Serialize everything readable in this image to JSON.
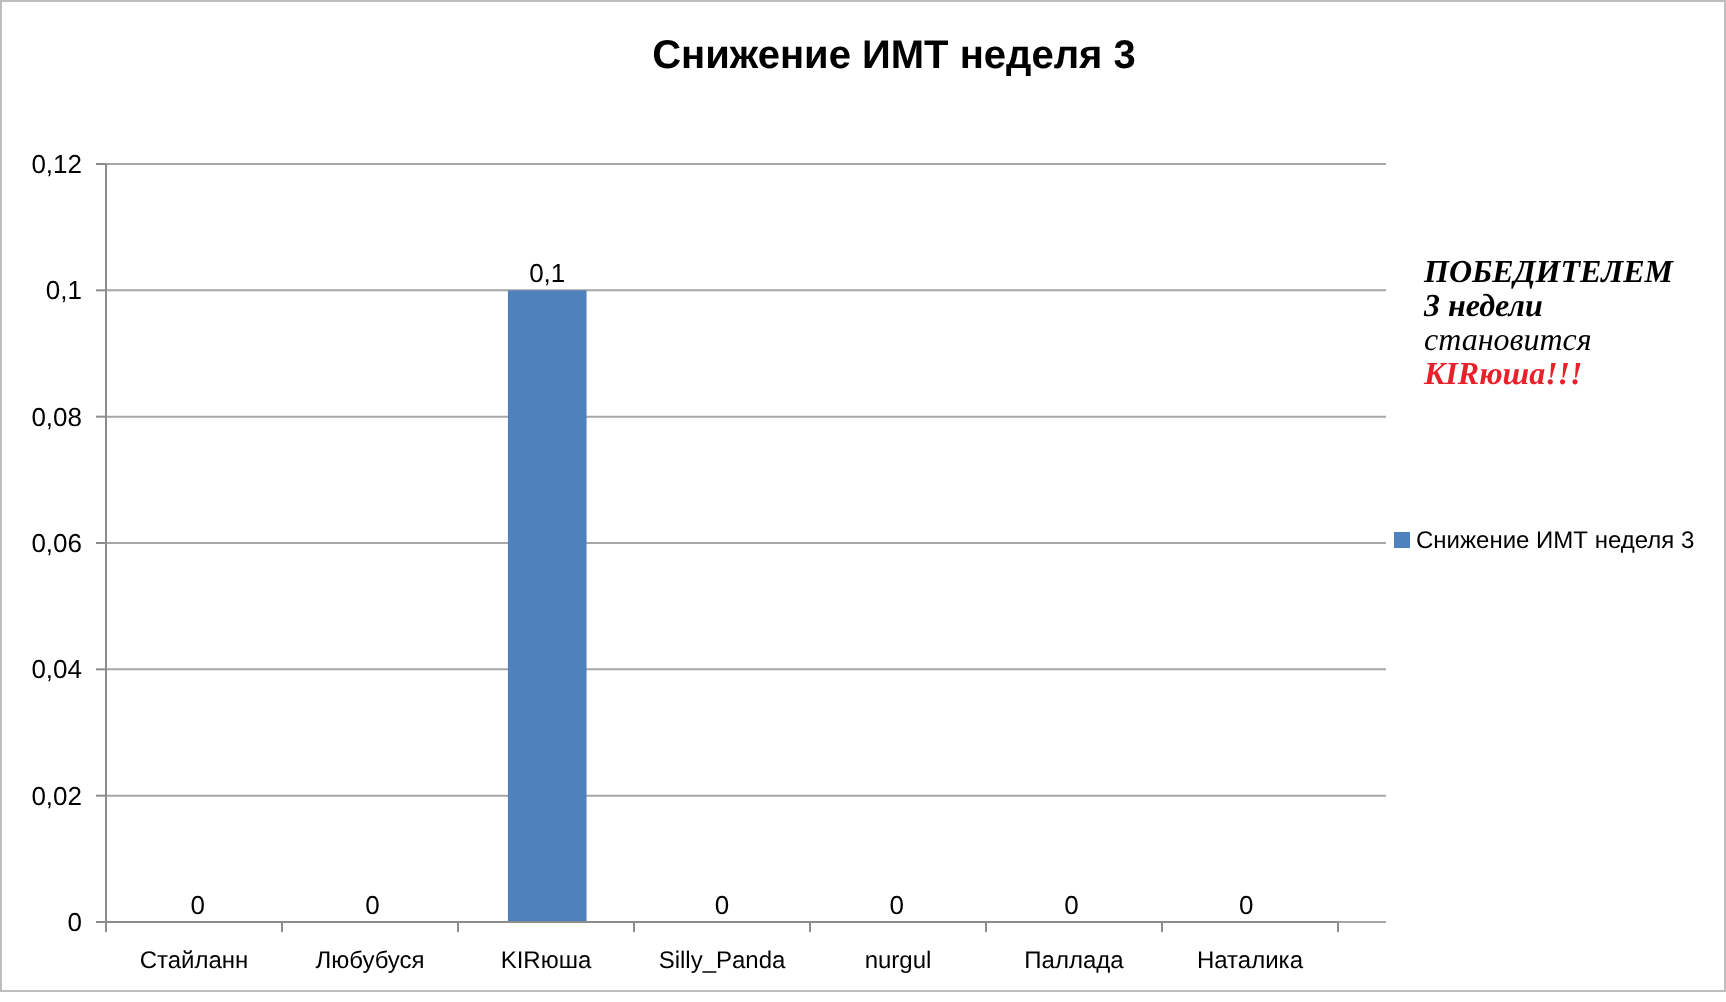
{
  "chart_data": {
    "type": "bar",
    "title": "Снижение ИМТ неделя 3",
    "categories": [
      "Стайланн",
      "Любубуся",
      "KIRюша",
      "Silly_Panda",
      "nurgul",
      "Паллада",
      "Наталика"
    ],
    "series": [
      {
        "name": "Снижение ИМТ неделя 3",
        "color": "#4f81bd",
        "values": [
          0,
          0,
          0.1,
          0,
          0,
          0,
          0
        ],
        "value_labels": [
          "0",
          "0",
          "0,1",
          "0",
          "0",
          "0",
          "0"
        ]
      }
    ],
    "ylim": [
      0,
      0.12
    ],
    "yticks": [
      0,
      {
        "value": 0.02,
        "label": "0,02"
      },
      {
        "value": 0.04,
        "label": "0,04"
      },
      {
        "value": 0.06,
        "label": "0,06"
      },
      {
        "value": 0.08,
        "label": "0,08"
      },
      {
        "value": 0.1,
        "label": "0,1"
      },
      {
        "value": 0.12,
        "label": "0,12"
      }
    ],
    "grid": "y",
    "legend": "right",
    "annotations": [
      "ПОБЕДИТЕЛЕМ",
      "3 недели",
      "становится",
      "KIRюша!!!"
    ]
  }
}
